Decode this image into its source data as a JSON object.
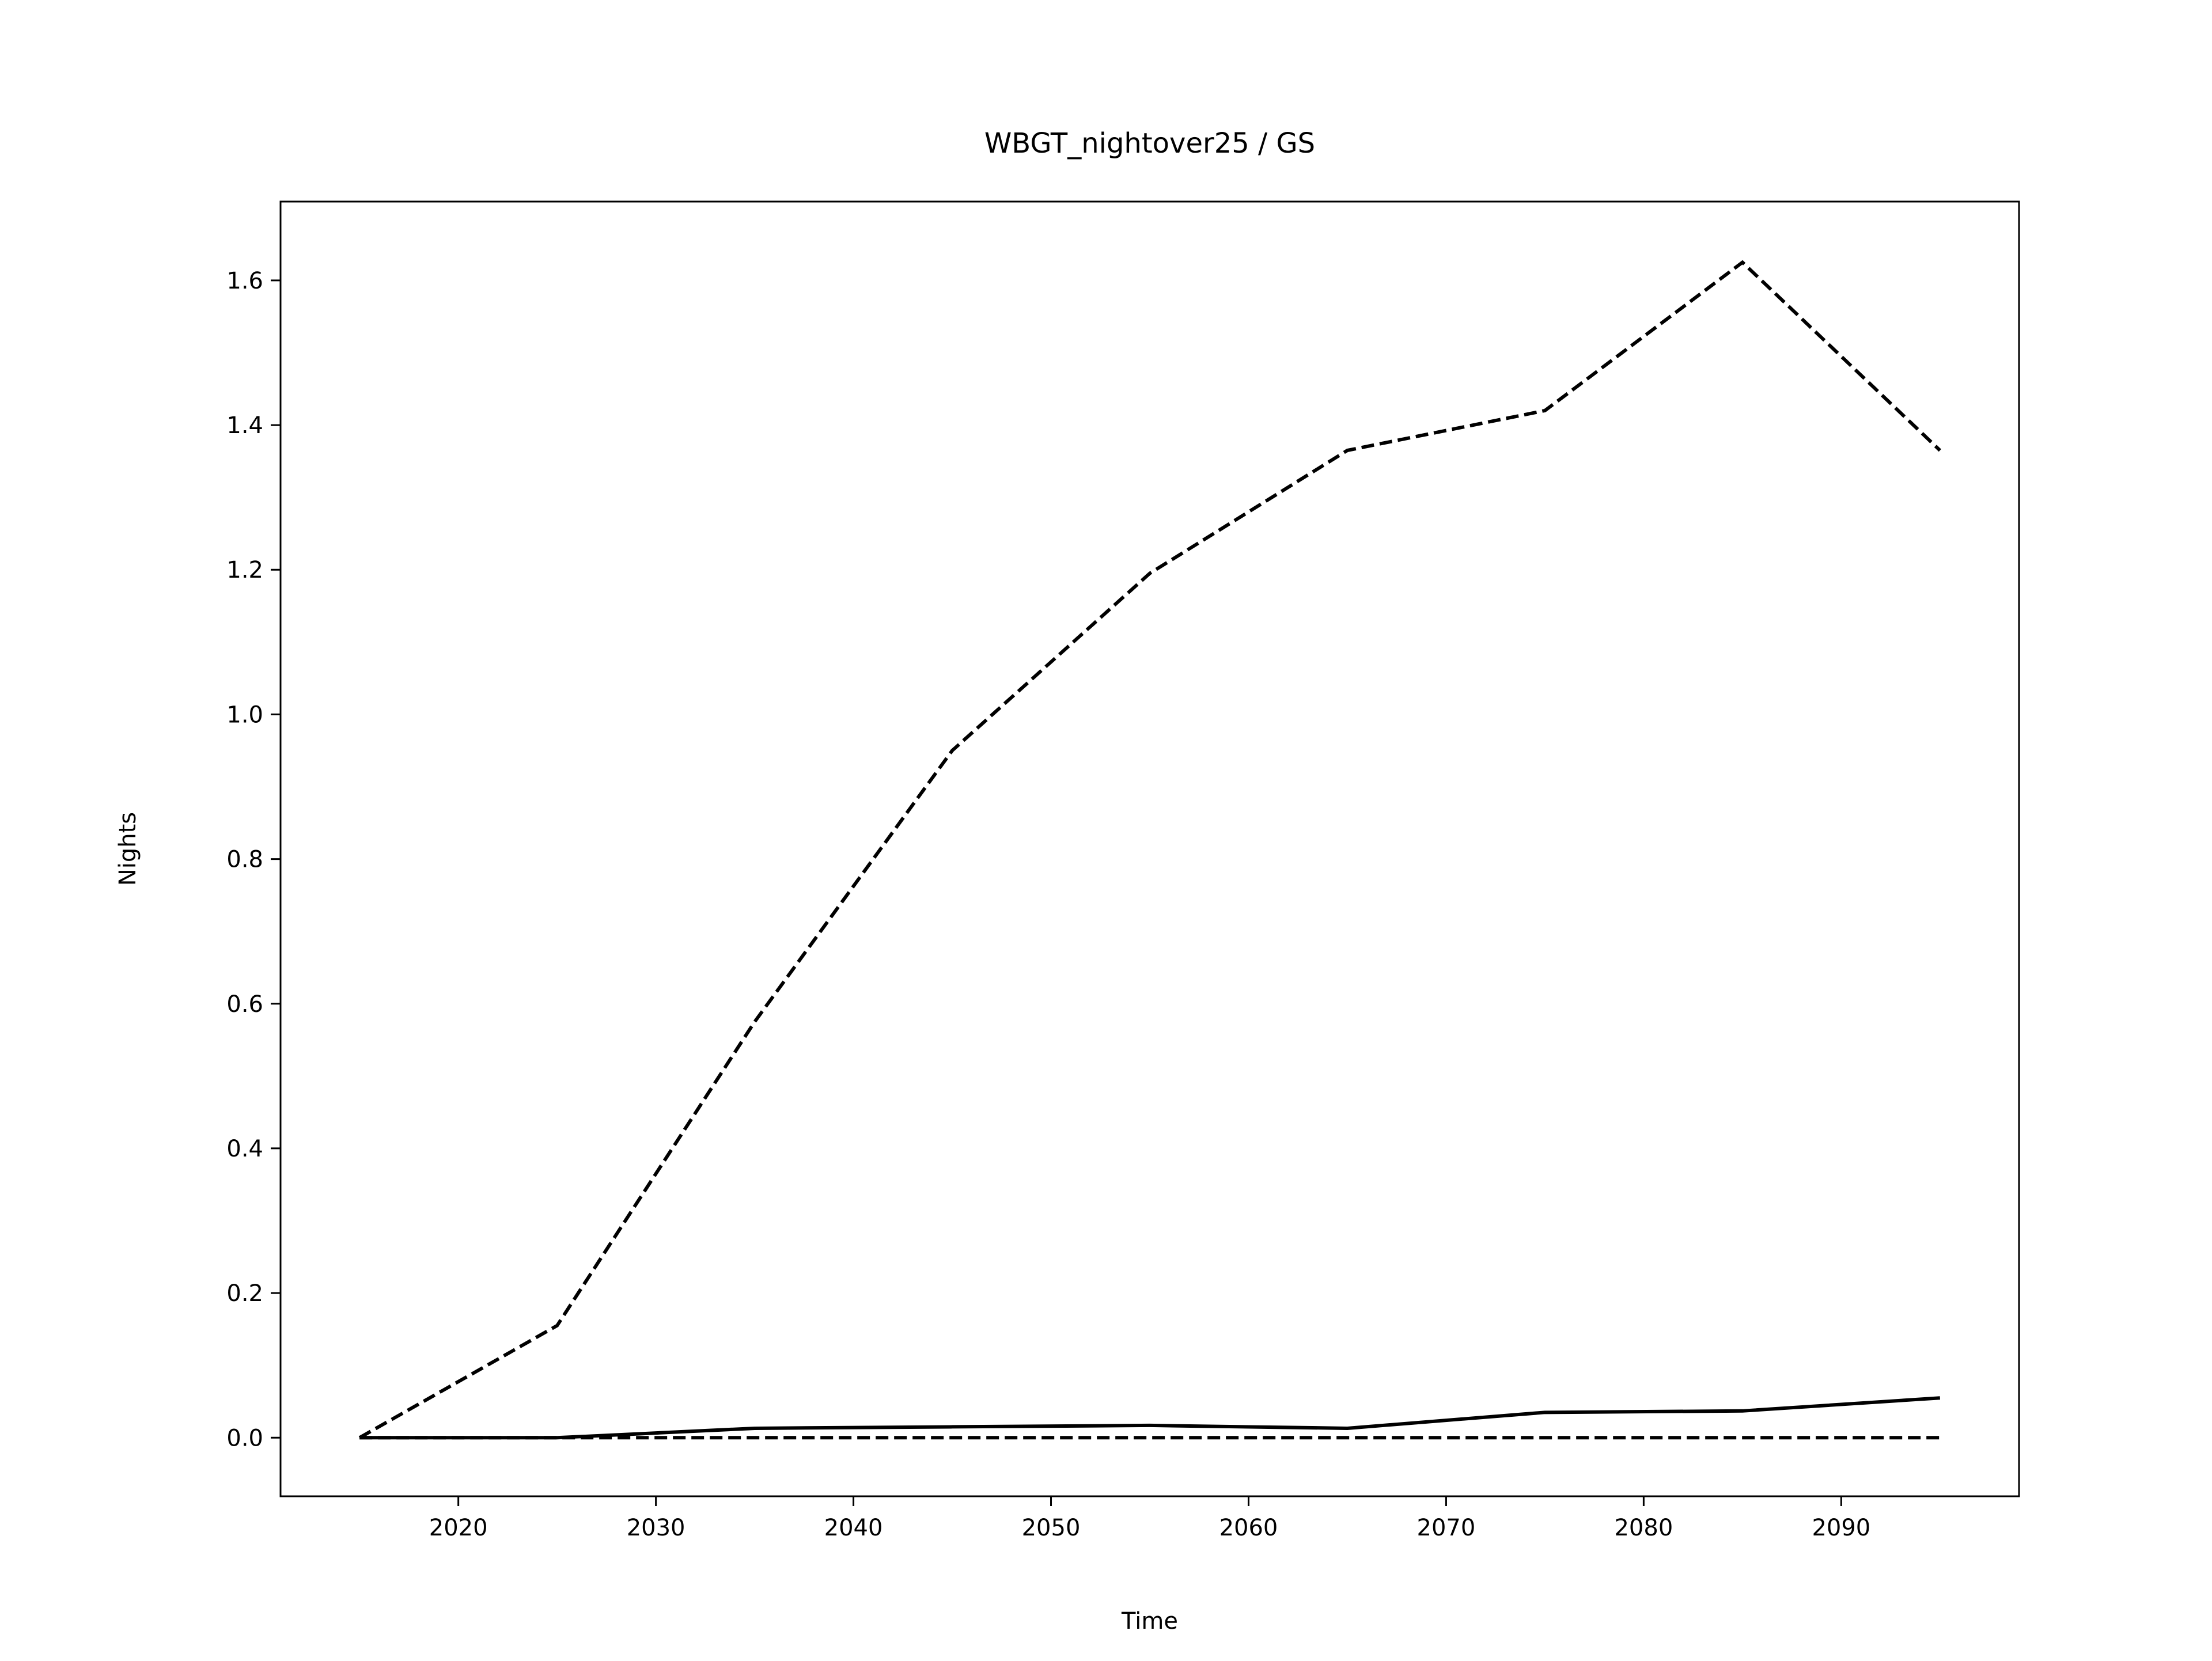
{
  "chart_data": {
    "type": "line",
    "title": "WBGT_nightover25 / GS",
    "x_label": "Time",
    "y_label": "Nights",
    "x": [
      2015,
      2025,
      2035,
      2045,
      2055,
      2065,
      2075,
      2085,
      2095
    ],
    "series": [
      {
        "color": "#000000",
        "linestyle": "dashed",
        "values": [
          0,
          0.155,
          0.575,
          0.95,
          1.195,
          1.365,
          1.42,
          1.625,
          1.365
        ]
      },
      {
        "color": "#000000",
        "linestyle": "solid",
        "values": [
          0,
          0,
          0.013,
          0.015,
          0.017,
          0.013,
          0.035,
          0.037,
          0.055
        ]
      },
      {
        "color": "#000000",
        "linestyle": "dashed",
        "values": [
          0,
          0,
          0,
          0,
          0,
          0,
          0,
          0,
          0
        ]
      }
    ],
    "xlim": [
      2011,
      2099
    ],
    "xticks": [
      2020,
      2030,
      2040,
      2050,
      2060,
      2070,
      2080,
      2090
    ],
    "ylim": [
      -0.081,
      1.709
    ],
    "yticks": [
      {
        "value": 0,
        "label": "0.0"
      },
      {
        "value": 0.2,
        "label": "0.2"
      },
      {
        "value": 0.4,
        "label": "0.4"
      },
      {
        "value": 0.6,
        "label": "0.6"
      },
      {
        "value": 0.8,
        "label": "0.8"
      },
      {
        "value": 1,
        "label": "1.0"
      },
      {
        "value": 1.2,
        "label": "1.2"
      },
      {
        "value": 1.4,
        "label": "1.4"
      },
      {
        "value": 1.6,
        "label": "1.6"
      }
    ],
    "grid": false
  }
}
